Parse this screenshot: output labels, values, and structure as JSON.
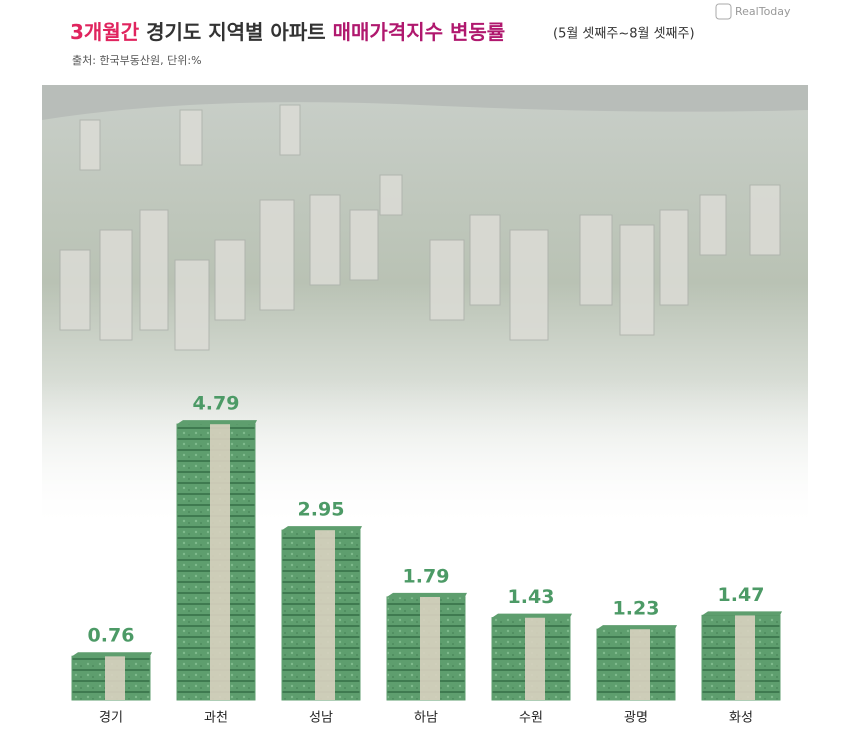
{
  "chart_data": {
    "type": "bar",
    "title": [
      "3개월간",
      "경기도 지역별 아파트",
      "매매가격지수 변동률"
    ],
    "title_colors": [
      "#e0245e",
      "#333333",
      "#b0186e"
    ],
    "subtitle": "(5월 셋째주~8월 셋째주)",
    "source": "출처: 한국부동산원, 단위:%",
    "logo": "RealToday",
    "categories": [
      "경기",
      "과천",
      "성남",
      "하남",
      "수원",
      "광명",
      "화성"
    ],
    "values": [
      0.76,
      4.79,
      2.95,
      1.79,
      1.43,
      1.23,
      1.47
    ],
    "color": "#5e9e6e",
    "label_color": "#4c9a66"
  }
}
